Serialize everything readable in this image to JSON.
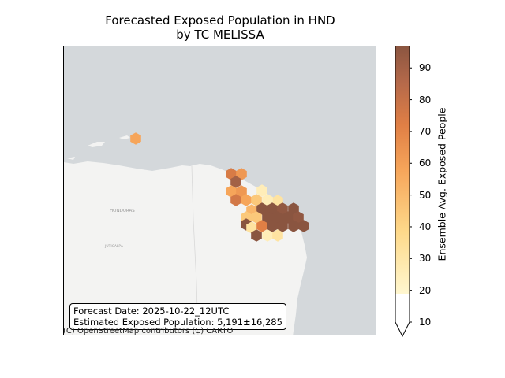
{
  "title": {
    "line1": "Forecasted Exposed Population in HND",
    "line2": "by TC MELISSA"
  },
  "map": {
    "place_labels": [
      "HONDURAS",
      "JUTICALPA"
    ],
    "attribution": "(C) OpenStreetMap contributors (C) CARTO",
    "colors": {
      "ocean": "#d4d8db",
      "land": "#f2f2f2"
    }
  },
  "info_box": {
    "forecast_line": "Forecast Date: 2025-10-22_12UTC",
    "exposure_line": "Estimated Exposed Population: 5,191±16,285"
  },
  "colorbar": {
    "label": "Ensemble Avg. Exposed People",
    "ticks": [
      "10",
      "20",
      "30",
      "40",
      "50",
      "60",
      "70",
      "80",
      "90"
    ],
    "range": [
      10,
      97
    ],
    "extend": "min",
    "colors": [
      "#ffffff",
      "#fff7cf",
      "#fed98a",
      "#f6a55a",
      "#e07f45",
      "#b5694a",
      "#8a5540"
    ]
  },
  "chart_data": {
    "type": "heatmap",
    "title": "Forecasted Exposed Population in HND by TC MELISSA",
    "colorbar_label": "Ensemble Avg. Exposed People",
    "note": "hexbin cells with ensemble average exposed people",
    "cells": [
      {
        "value": 68
      },
      {
        "value": 55
      },
      {
        "value": 25
      },
      {
        "value": 85
      },
      {
        "value": 50
      },
      {
        "value": 55
      },
      {
        "value": 30
      },
      {
        "value": 70
      },
      {
        "value": 50
      },
      {
        "value": 40
      },
      {
        "value": 25
      },
      {
        "value": 45
      },
      {
        "value": 40
      },
      {
        "value": 92
      },
      {
        "value": 92
      },
      {
        "value": 90
      },
      {
        "value": 92
      },
      {
        "value": 40
      },
      {
        "value": 92
      },
      {
        "value": 92
      },
      {
        "value": 92
      },
      {
        "value": 90
      },
      {
        "value": 92
      },
      {
        "value": 30
      },
      {
        "value": 65
      },
      {
        "value": 92
      },
      {
        "value": 92
      },
      {
        "value": 92
      },
      {
        "value": 92
      },
      {
        "value": 92
      },
      {
        "value": 25
      },
      {
        "value": 30
      },
      {
        "value": 50
      }
    ]
  }
}
